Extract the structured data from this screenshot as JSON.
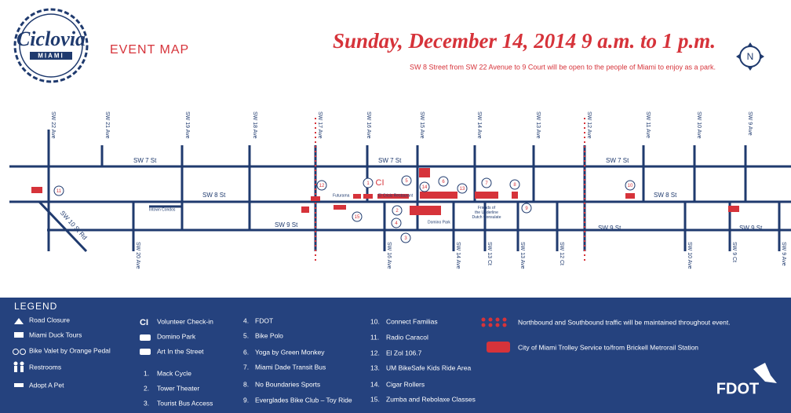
{
  "header": {
    "logo": "Ciclovia",
    "logo_sub": "MIAMI",
    "section": "EVENT MAP",
    "date": "Sunday, December 14, 2014 9 a.m. to 1 p.m.",
    "subtitle": "SW 8 Street from SW 22 Avenue to 9 Court will be open to the people of Miami to enjoy as a park.",
    "compass": "N"
  },
  "map": {
    "avenues_top": [
      "SW 22 Ave",
      "SW 21 Ave",
      "SW 19 Ave",
      "SW 18 Ave",
      "SW 17 Ave",
      "SW 16 Ave",
      "SW 15 Ave",
      "SW 14 Ave",
      "SW 13 Ave",
      "SW 12 Ave",
      "SW 11 Ave",
      "SW 10 Ave",
      "SW 9 Ave"
    ],
    "avenues_bottom": [
      "SW 20 Ave",
      "SW 16 Ave",
      "SW 14 Ave",
      "SW 13 Ct",
      "SW 13 Ave",
      "SW 12 Ct",
      "SW 10 Ave",
      "SW 9 Ct",
      "SW 9 Ave"
    ],
    "streets": [
      "SW 7 St",
      "SW 7 St",
      "SW 7 St",
      "SW 8 St",
      "SW 8 St",
      "SW 9 St",
      "SW 9 St",
      "SW 9 St",
      "SW 10 St Rd"
    ],
    "places": [
      "Intown Condos",
      "Futurama",
      "El Crisis Restaurant",
      "Friends of the Underline Dutch Consulate",
      "Domino Park"
    ],
    "markers": [
      "11",
      "12",
      "1",
      "CI",
      "5",
      "14",
      "6",
      "13",
      "7",
      "8",
      "10",
      "2",
      "3",
      "4",
      "15",
      "9"
    ]
  },
  "legend": {
    "title": "LEGEND",
    "symbols": [
      "Road Closure",
      "Miami Duck Tours",
      "Bike Valet by Orange Pedal",
      "Restrooms",
      "Adopt A Pet"
    ],
    "checkin_icon": "CI",
    "features": [
      "Volunteer Check-in",
      "Domino Park",
      "Art In the Street"
    ],
    "items": [
      {
        "number": "1.",
        "label": "Mack Cycle"
      },
      {
        "number": "2.",
        "label": "Tower Theater"
      },
      {
        "number": "3.",
        "label": "Tourist Bus Access"
      },
      {
        "number": "4.",
        "label": "FDOT"
      },
      {
        "number": "5.",
        "label": "Bike Polo"
      },
      {
        "number": "6.",
        "label": "Yoga by Green Monkey"
      },
      {
        "number": "7.",
        "label": "Miami Dade Transit Bus"
      },
      {
        "number": "8.",
        "label": "No Boundaries Sports"
      },
      {
        "number": "9.",
        "label": "Everglades Bike Club – Toy Ride"
      },
      {
        "number": "10.",
        "label": "Connect Familias"
      },
      {
        "number": "11.",
        "label": "Radio Caracol"
      },
      {
        "number": "12.",
        "label": "El Zol 106.7"
      },
      {
        "number": "13.",
        "label": "UM BikeSafe Kids Ride Area"
      },
      {
        "number": "14.",
        "label": "Cigar Rollers"
      },
      {
        "number": "15.",
        "label": "Zumba and Rebolaxe Classes"
      }
    ],
    "notes": [
      "Northbound and Southbound traffic will be maintained throughout event.",
      "City of Miami Trolley Service to/from Brickell Metrorail Station"
    ],
    "agency": "FDOT"
  }
}
